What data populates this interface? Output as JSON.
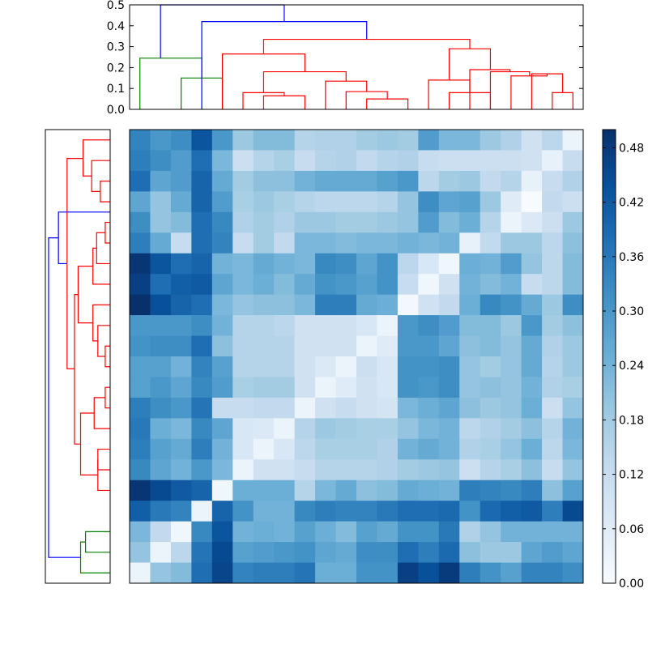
{
  "chart_data": [
    {
      "type": "dendrogram",
      "orientation": "top",
      "ylim": [
        0,
        0.5
      ],
      "y_ticks": [
        "0.0",
        "0.1",
        "0.2",
        "0.3",
        "0.4",
        "0.5"
      ],
      "colors": {
        "root": "#0000ff",
        "cluster_a": "#008000",
        "cluster_b": "#ff0000"
      },
      "links": [
        {
          "left_x": 2.5,
          "right_x": 4.5,
          "left_h": 0.0,
          "right_h": 0.0,
          "height": 0.15,
          "color": "#008000"
        },
        {
          "left_x": 0.5,
          "right_x": 3.5,
          "left_h": 0.0,
          "right_h": 0.15,
          "height": 0.245,
          "color": "#008000"
        },
        {
          "left_x": 6.5,
          "right_x": 8.5,
          "left_h": 0.0,
          "right_h": 0.0,
          "height": 0.065,
          "color": "#ff0000"
        },
        {
          "left_x": 5.5,
          "right_x": 7.5,
          "left_h": 0.0,
          "right_h": 0.065,
          "height": 0.08,
          "color": "#ff0000"
        },
        {
          "left_x": 11.5,
          "right_x": 13.5,
          "left_h": 0.0,
          "right_h": 0.0,
          "height": 0.05,
          "color": "#ff0000"
        },
        {
          "left_x": 10.5,
          "right_x": 12.5,
          "left_h": 0.0,
          "right_h": 0.05,
          "height": 0.085,
          "color": "#ff0000"
        },
        {
          "left_x": 9.5,
          "right_x": 11.5,
          "left_h": 0.0,
          "right_h": 0.085,
          "height": 0.135,
          "color": "#ff0000"
        },
        {
          "left_x": 6.5,
          "right_x": 10.5,
          "left_h": 0.08,
          "right_h": 0.135,
          "height": 0.18,
          "color": "#ff0000"
        },
        {
          "left_x": 4.5,
          "right_x": 8.5,
          "left_h": 0.0,
          "right_h": 0.18,
          "height": 0.265,
          "color": "#ff0000"
        },
        {
          "left_x": 15.5,
          "right_x": 17.5,
          "left_h": 0.0,
          "right_h": 0.0,
          "height": 0.08,
          "color": "#ff0000"
        },
        {
          "left_x": 14.5,
          "right_x": 16.5,
          "left_h": 0.0,
          "right_h": 0.08,
          "height": 0.14,
          "color": "#ff0000"
        },
        {
          "left_x": 20.5,
          "right_x": 21.5,
          "left_h": 0.0,
          "right_h": 0.0,
          "height": 0.08,
          "color": "#ff0000"
        },
        {
          "left_x": 19.5,
          "right_x": 21.0,
          "left_h": 0.0,
          "right_h": 0.08,
          "height": 0.17,
          "color": "#ff0000"
        },
        {
          "left_x": 18.5,
          "right_x": 20.25,
          "left_h": 0.0,
          "right_h": 0.17,
          "height": 0.16,
          "color": "#ff0000"
        },
        {
          "left_x": 17.5,
          "right_x": 19.4,
          "left_h": 0.0,
          "right_h": 0.16,
          "height": 0.18,
          "color": "#ff0000"
        },
        {
          "left_x": 16.5,
          "right_x": 18.45,
          "left_h": 0.0,
          "right_h": 0.18,
          "height": 0.19,
          "color": "#ff0000"
        },
        {
          "left_x": 15.5,
          "right_x": 17.5,
          "left_h": 0.14,
          "right_h": 0.19,
          "height": 0.29,
          "color": "#ff0000"
        },
        {
          "left_x": 6.5,
          "right_x": 16.5,
          "left_h": 0.265,
          "right_h": 0.29,
          "height": 0.335,
          "color": "#ff0000"
        },
        {
          "left_x": 3.5,
          "right_x": 11.5,
          "left_h": 0.0,
          "right_h": 0.335,
          "height": 0.42,
          "color": "#0000ff"
        },
        {
          "left_x": 1.5,
          "right_x": 7.5,
          "left_h": 0.245,
          "right_h": 0.42,
          "height": 0.5,
          "color": "#0000ff"
        }
      ]
    },
    {
      "type": "dendrogram",
      "orientation": "left",
      "colors": {
        "root": "#0000ff",
        "cluster_a": "#008000",
        "cluster_b": "#ff0000"
      },
      "links": [
        {
          "left_y": 13.5,
          "right_y": 12.5,
          "left_h": 0.0,
          "right_h": 0.0,
          "height": 0.04,
          "color": "#ff0000"
        },
        {
          "left_y": 14.5,
          "right_y": 13.0,
          "left_h": 0.0,
          "right_h": 0.04,
          "height": 0.13,
          "color": "#ff0000"
        },
        {
          "left_y": 16.5,
          "right_y": 15.5,
          "left_h": 0.0,
          "right_h": 0.0,
          "height": 0.1,
          "color": "#ff0000"
        },
        {
          "left_y": 17.5,
          "right_y": 16.0,
          "left_h": 0.0,
          "right_h": 0.1,
          "height": 0.1,
          "color": "#ff0000"
        },
        {
          "left_y": 13.75,
          "right_y": 16.75,
          "left_h": 0.13,
          "right_h": 0.1,
          "height": 0.24,
          "color": "#ff0000"
        },
        {
          "left_y": 11.5,
          "right_y": 10.5,
          "left_h": 0.0,
          "right_h": 0.0,
          "height": 0.04,
          "color": "#ff0000"
        },
        {
          "left_y": 9.5,
          "right_y": 11.0,
          "left_h": 0.0,
          "right_h": 0.04,
          "height": 0.1,
          "color": "#ff0000"
        },
        {
          "left_y": 8.5,
          "right_y": 10.25,
          "left_h": 0.0,
          "right_h": 0.1,
          "height": 0.14,
          "color": "#ff0000"
        },
        {
          "left_y": 5.5,
          "right_y": 4.5,
          "left_h": 0.0,
          "right_h": 0.0,
          "height": 0.04,
          "color": "#ff0000"
        },
        {
          "left_y": 6.5,
          "right_y": 5.0,
          "left_h": 0.0,
          "right_h": 0.04,
          "height": 0.11,
          "color": "#ff0000"
        },
        {
          "left_y": 7.5,
          "right_y": 5.75,
          "left_h": 0.0,
          "right_h": 0.11,
          "height": 0.14,
          "color": "#ff0000"
        },
        {
          "left_y": 9.375,
          "right_y": 6.625,
          "left_h": 0.14,
          "right_h": 0.14,
          "height": 0.26,
          "color": "#ff0000"
        },
        {
          "left_y": 15.25,
          "right_y": 8.0,
          "left_h": 0.24,
          "right_h": 0.26,
          "height": 0.29,
          "color": "#ff0000"
        },
        {
          "left_y": 2.5,
          "right_y": 3.5,
          "left_h": 0.0,
          "right_h": 0.0,
          "height": 0.08,
          "color": "#ff0000"
        },
        {
          "left_y": 1.5,
          "right_y": 3.0,
          "left_h": 0.0,
          "right_h": 0.08,
          "height": 0.15,
          "color": "#ff0000"
        },
        {
          "left_y": 0.5,
          "right_y": 2.25,
          "left_h": 0.0,
          "right_h": 0.15,
          "height": 0.22,
          "color": "#ff0000"
        },
        {
          "left_y": 11.6,
          "right_y": 1.4,
          "left_h": 0.29,
          "right_h": 0.22,
          "height": 0.35,
          "color": "#ff0000"
        },
        {
          "left_y": 6.5,
          "right_y": 4.0,
          "left_h": 0.35,
          "right_h": 0.0,
          "height": 0.42,
          "color": "#0000ff"
        },
        {
          "left_y": 20.5,
          "right_y": 19.5,
          "left_h": 0.0,
          "right_h": 0.0,
          "height": 0.2,
          "color": "#008000"
        },
        {
          "left_y": 21.5,
          "right_y": 20.0,
          "left_h": 0.0,
          "right_h": 0.2,
          "height": 0.24,
          "color": "#008000"
        },
        {
          "left_y": 5.25,
          "right_y": 20.75,
          "left_h": 0.42,
          "right_h": 0.24,
          "height": 0.5,
          "color": "#0000ff"
        }
      ]
    },
    {
      "type": "heatmap",
      "rows": 22,
      "cols": 22,
      "colormap": "Blues",
      "vmin": 0.0,
      "vmax": 0.5,
      "values": [
        [
          0.34,
          0.3,
          0.32,
          0.43,
          0.3,
          0.19,
          0.22,
          0.22,
          0.15,
          0.16,
          0.16,
          0.18,
          0.19,
          0.18,
          0.29,
          0.23,
          0.23,
          0.19,
          0.16,
          0.1,
          0.14,
          0.03
        ],
        [
          0.35,
          0.32,
          0.29,
          0.38,
          0.23,
          0.11,
          0.15,
          0.17,
          0.12,
          0.15,
          0.16,
          0.13,
          0.15,
          0.16,
          0.12,
          0.11,
          0.11,
          0.11,
          0.11,
          0.1,
          0.04,
          0.12
        ],
        [
          0.38,
          0.27,
          0.29,
          0.4,
          0.26,
          0.18,
          0.21,
          0.21,
          0.24,
          0.26,
          0.26,
          0.26,
          0.28,
          0.3,
          0.14,
          0.18,
          0.19,
          0.13,
          0.15,
          0.04,
          0.12,
          0.16
        ],
        [
          0.27,
          0.2,
          0.26,
          0.4,
          0.29,
          0.17,
          0.19,
          0.17,
          0.15,
          0.14,
          0.14,
          0.14,
          0.15,
          0.2,
          0.32,
          0.27,
          0.28,
          0.19,
          0.06,
          0.0,
          0.13,
          0.11
        ],
        [
          0.32,
          0.2,
          0.22,
          0.38,
          0.33,
          0.16,
          0.18,
          0.16,
          0.19,
          0.19,
          0.18,
          0.18,
          0.19,
          0.2,
          0.29,
          0.22,
          0.25,
          0.15,
          0.03,
          0.07,
          0.11,
          0.19
        ],
        [
          0.35,
          0.26,
          0.12,
          0.38,
          0.34,
          0.12,
          0.18,
          0.13,
          0.23,
          0.23,
          0.22,
          0.23,
          0.23,
          0.24,
          0.23,
          0.24,
          0.04,
          0.13,
          0.19,
          0.19,
          0.14,
          0.21
        ],
        [
          0.49,
          0.43,
          0.38,
          0.4,
          0.24,
          0.23,
          0.26,
          0.24,
          0.23,
          0.33,
          0.32,
          0.27,
          0.31,
          0.14,
          0.08,
          0.02,
          0.25,
          0.24,
          0.29,
          0.2,
          0.14,
          0.22
        ],
        [
          0.47,
          0.38,
          0.41,
          0.42,
          0.27,
          0.23,
          0.25,
          0.22,
          0.26,
          0.31,
          0.3,
          0.28,
          0.31,
          0.12,
          0.02,
          0.1,
          0.24,
          0.22,
          0.24,
          0.12,
          0.14,
          0.22
        ],
        [
          0.5,
          0.44,
          0.4,
          0.38,
          0.23,
          0.2,
          0.21,
          0.21,
          0.23,
          0.35,
          0.35,
          0.26,
          0.25,
          0.01,
          0.1,
          0.13,
          0.25,
          0.33,
          0.31,
          0.26,
          0.19,
          0.32
        ],
        [
          0.3,
          0.3,
          0.3,
          0.32,
          0.24,
          0.15,
          0.15,
          0.14,
          0.1,
          0.1,
          0.1,
          0.08,
          0.03,
          0.3,
          0.32,
          0.29,
          0.22,
          0.22,
          0.19,
          0.3,
          0.18,
          0.21
        ],
        [
          0.31,
          0.32,
          0.32,
          0.38,
          0.21,
          0.15,
          0.15,
          0.15,
          0.1,
          0.1,
          0.1,
          0.03,
          0.06,
          0.3,
          0.3,
          0.27,
          0.21,
          0.22,
          0.2,
          0.26,
          0.16,
          0.19
        ],
        [
          0.28,
          0.28,
          0.24,
          0.34,
          0.28,
          0.15,
          0.15,
          0.15,
          0.1,
          0.07,
          0.03,
          0.11,
          0.08,
          0.31,
          0.31,
          0.32,
          0.2,
          0.18,
          0.2,
          0.26,
          0.15,
          0.19
        ],
        [
          0.28,
          0.3,
          0.27,
          0.33,
          0.29,
          0.17,
          0.18,
          0.18,
          0.1,
          0.03,
          0.06,
          0.1,
          0.08,
          0.31,
          0.3,
          0.32,
          0.2,
          0.21,
          0.2,
          0.24,
          0.16,
          0.17
        ],
        [
          0.35,
          0.32,
          0.3,
          0.37,
          0.12,
          0.12,
          0.13,
          0.13,
          0.03,
          0.1,
          0.12,
          0.1,
          0.09,
          0.23,
          0.25,
          0.27,
          0.21,
          0.19,
          0.2,
          0.25,
          0.11,
          0.2
        ],
        [
          0.36,
          0.25,
          0.23,
          0.33,
          0.27,
          0.08,
          0.07,
          0.03,
          0.15,
          0.19,
          0.18,
          0.17,
          0.17,
          0.2,
          0.23,
          0.24,
          0.14,
          0.16,
          0.18,
          0.21,
          0.15,
          0.24
        ],
        [
          0.35,
          0.28,
          0.26,
          0.35,
          0.24,
          0.08,
          0.03,
          0.08,
          0.14,
          0.17,
          0.17,
          0.17,
          0.16,
          0.24,
          0.26,
          0.24,
          0.16,
          0.17,
          0.2,
          0.25,
          0.14,
          0.23
        ],
        [
          0.33,
          0.27,
          0.24,
          0.3,
          0.23,
          0.03,
          0.1,
          0.1,
          0.12,
          0.15,
          0.15,
          0.15,
          0.16,
          0.18,
          0.19,
          0.2,
          0.11,
          0.15,
          0.17,
          0.21,
          0.12,
          0.2
        ],
        [
          0.49,
          0.45,
          0.42,
          0.4,
          0.02,
          0.25,
          0.25,
          0.25,
          0.15,
          0.23,
          0.26,
          0.21,
          0.22,
          0.26,
          0.25,
          0.24,
          0.35,
          0.34,
          0.33,
          0.35,
          0.21,
          0.28
        ],
        [
          0.41,
          0.36,
          0.34,
          0.03,
          0.4,
          0.31,
          0.24,
          0.24,
          0.33,
          0.35,
          0.34,
          0.34,
          0.36,
          0.38,
          0.38,
          0.39,
          0.31,
          0.39,
          0.41,
          0.42,
          0.35,
          0.45
        ],
        [
          0.23,
          0.13,
          0.02,
          0.33,
          0.43,
          0.24,
          0.25,
          0.24,
          0.28,
          0.25,
          0.22,
          0.28,
          0.26,
          0.31,
          0.31,
          0.36,
          0.16,
          0.2,
          0.24,
          0.24,
          0.24,
          0.24
        ],
        [
          0.2,
          0.03,
          0.14,
          0.37,
          0.45,
          0.28,
          0.29,
          0.3,
          0.31,
          0.27,
          0.26,
          0.32,
          0.32,
          0.38,
          0.35,
          0.39,
          0.21,
          0.19,
          0.19,
          0.27,
          0.29,
          0.27
        ],
        [
          0.03,
          0.2,
          0.22,
          0.38,
          0.46,
          0.34,
          0.35,
          0.35,
          0.37,
          0.25,
          0.25,
          0.31,
          0.31,
          0.47,
          0.44,
          0.48,
          0.35,
          0.31,
          0.28,
          0.34,
          0.34,
          0.32
        ]
      ]
    },
    {
      "type": "colorbar",
      "colormap": "Blues",
      "range": [
        0.0,
        0.5
      ],
      "ticks": [
        "0.00",
        "0.06",
        "0.12",
        "0.18",
        "0.24",
        "0.30",
        "0.36",
        "0.42",
        "0.48"
      ]
    }
  ]
}
